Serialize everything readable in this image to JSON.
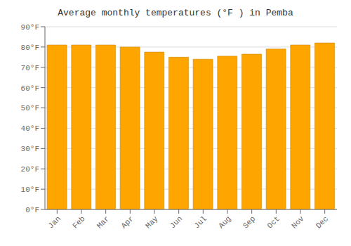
{
  "chart_data": {
    "type": "bar",
    "title": "Average monthly temperatures (°F ) in Pemba",
    "categories": [
      "Jan",
      "Feb",
      "Mar",
      "Apr",
      "May",
      "Jun",
      "Jul",
      "Aug",
      "Sep",
      "Oct",
      "Nov",
      "Dec"
    ],
    "values": [
      81,
      81,
      81,
      80,
      77.5,
      75,
      74,
      75.5,
      76.5,
      79,
      81,
      82
    ],
    "color": "#FFA500",
    "ylim": [
      0,
      90
    ],
    "yticks": [
      {
        "value": 0,
        "label": "0°F"
      },
      {
        "value": 10,
        "label": "10°F"
      },
      {
        "value": 20,
        "label": "20°F"
      },
      {
        "value": 30,
        "label": "30°F"
      },
      {
        "value": 40,
        "label": "40°F"
      },
      {
        "value": 50,
        "label": "50°F"
      },
      {
        "value": 60,
        "label": "60°F"
      },
      {
        "value": 70,
        "label": "70°F"
      },
      {
        "value": 80,
        "label": "80°F"
      },
      {
        "value": 90,
        "label": "90°F"
      }
    ],
    "grid": true
  }
}
